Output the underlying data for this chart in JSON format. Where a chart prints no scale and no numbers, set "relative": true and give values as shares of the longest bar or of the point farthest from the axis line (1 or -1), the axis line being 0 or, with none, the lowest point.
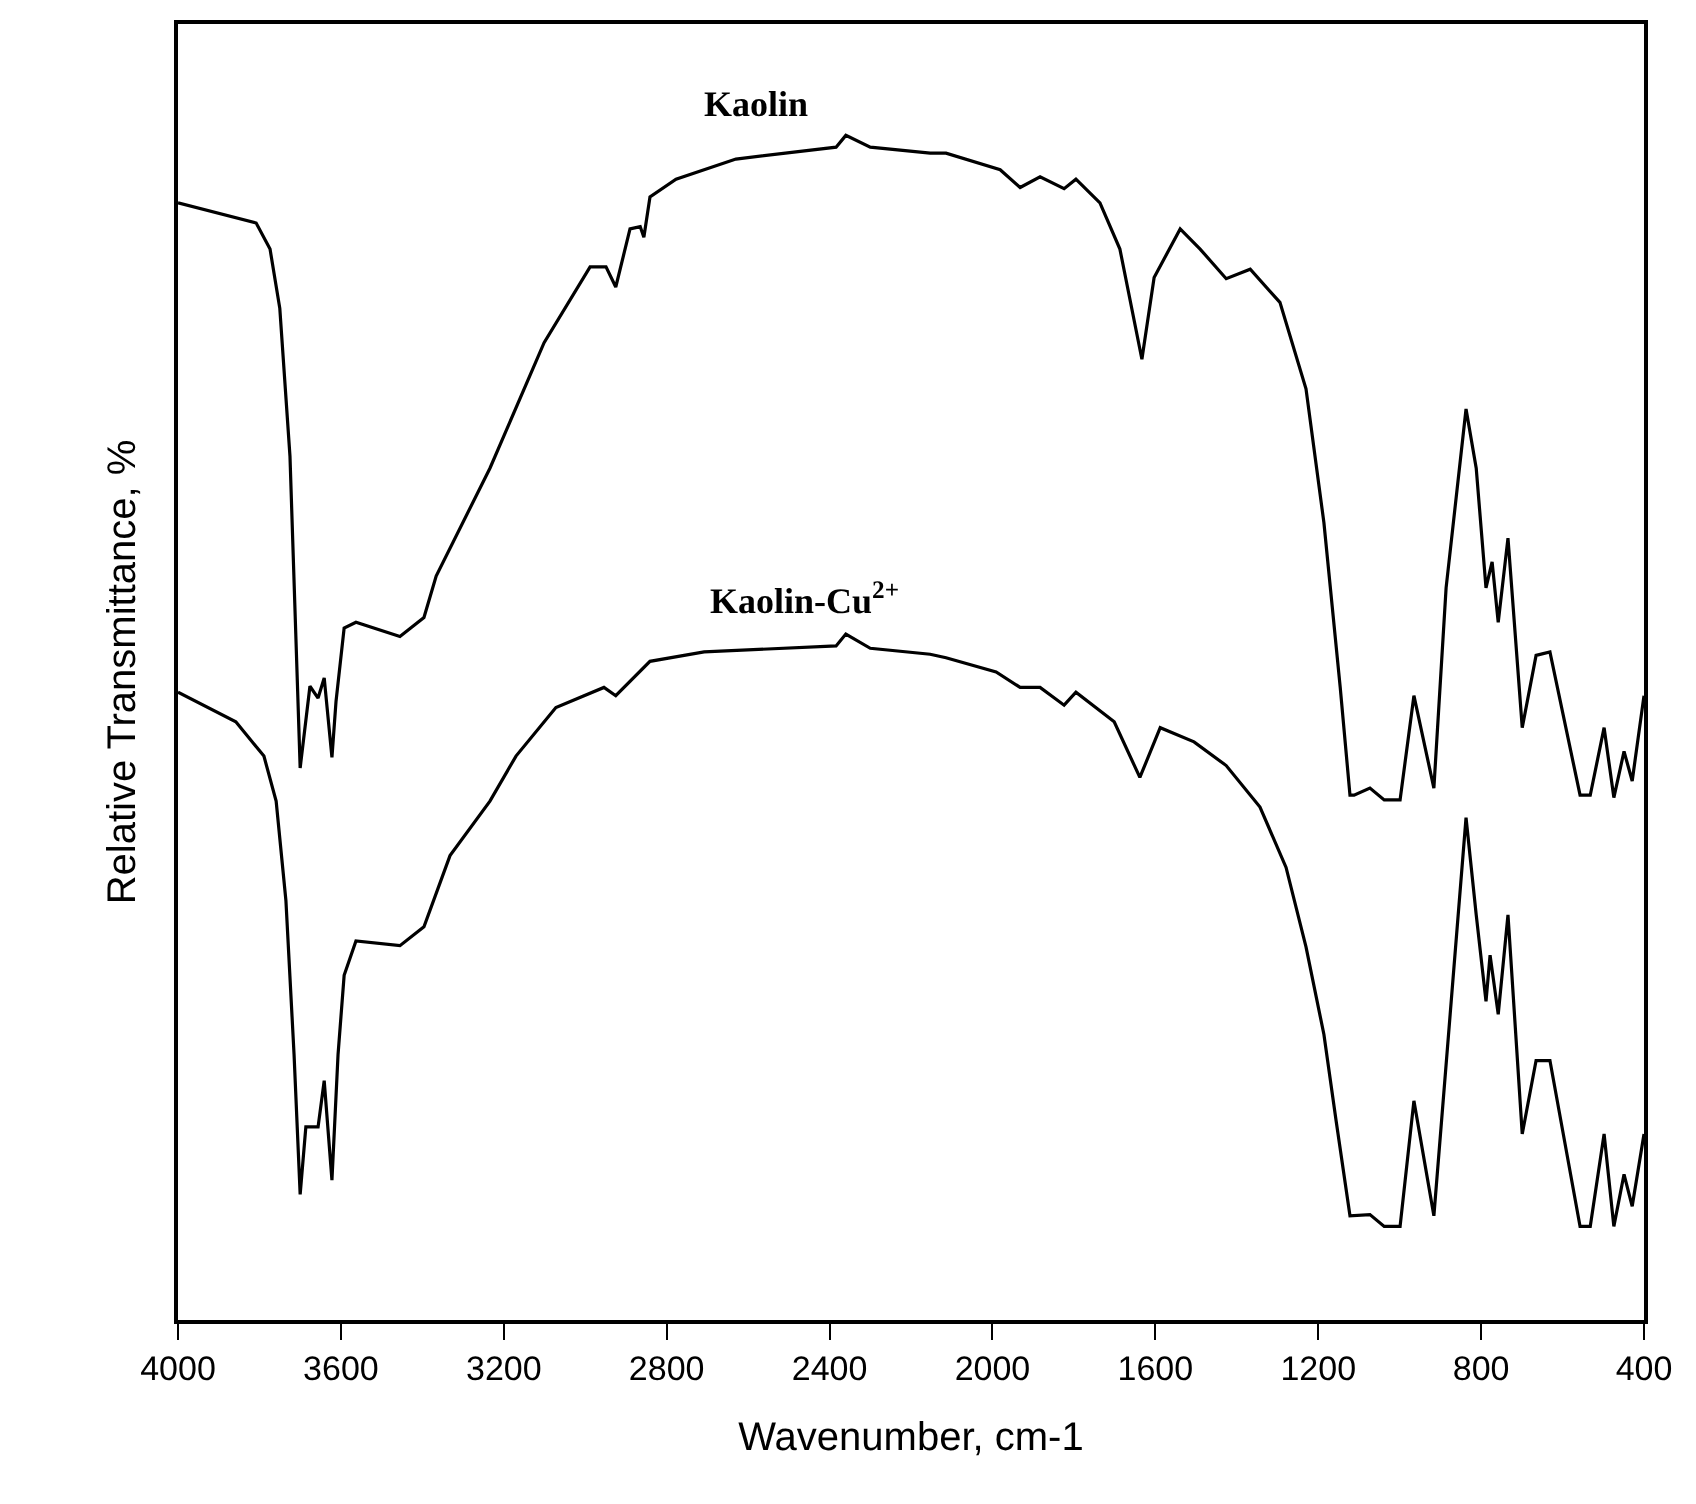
{
  "chart_data": {
    "type": "line",
    "relative": true,
    "xlabel": "Wavenumber, cm-1",
    "ylabel": "Relative Transmittance, %",
    "xlim": [
      4000,
      400
    ],
    "xticks": [
      4000,
      3600,
      3200,
      2800,
      2400,
      2000,
      1600,
      1200,
      800,
      400
    ],
    "tick_labels": "x",
    "legend": false,
    "marker": "none",
    "line_style": "solid",
    "series": [
      {
        "name": "Kaolin",
        "color": "#000000",
        "x": [
          4000,
          3808,
          3774,
          3750,
          3725,
          3700,
          3676,
          3656,
          3641,
          3622,
          3612,
          3592,
          3563,
          3455,
          3396,
          3366,
          3234,
          3101,
          2988,
          2949,
          2925,
          2890,
          2865,
          2856,
          2841,
          2777,
          2630,
          2384,
          2360,
          2300,
          2153,
          2114,
          1981,
          1932,
          1883,
          1824,
          1795,
          1736,
          1687,
          1633,
          1603,
          1539,
          1490,
          1426,
          1367,
          1294,
          1230,
          1186,
          1146,
          1122,
          1112,
          1073,
          1038,
          999,
          965,
          916,
          886,
          837,
          812,
          788,
          773,
          758,
          734,
          699,
          665,
          631,
          557,
          532,
          498,
          474,
          449,
          429,
          400
        ],
        "values": [
          0.943,
          0.926,
          0.904,
          0.854,
          0.729,
          0.466,
          0.535,
          0.525,
          0.542,
          0.475,
          0.522,
          0.584,
          0.589,
          0.577,
          0.593,
          0.628,
          0.719,
          0.825,
          0.889,
          0.889,
          0.872,
          0.921,
          0.923,
          0.914,
          0.948,
          0.963,
          0.98,
          0.99,
          1,
          0.99,
          0.985,
          0.985,
          0.971,
          0.956,
          0.965,
          0.955,
          0.963,
          0.943,
          0.904,
          0.811,
          0.88,
          0.921,
          0.904,
          0.879,
          0.887,
          0.859,
          0.786,
          0.673,
          0.534,
          0.443,
          0.443,
          0.449,
          0.439,
          0.439,
          0.527,
          0.449,
          0.618,
          0.769,
          0.719,
          0.618,
          0.64,
          0.589,
          0.66,
          0.5,
          0.561,
          0.564,
          0.443,
          0.443,
          0.5,
          0.441,
          0.48,
          0.455,
          0.527
        ]
      },
      {
        "name": "Kaolin-Cu$^{2+}$",
        "color": "#000000",
        "x": [
          4000,
          3858,
          3789,
          3759,
          3735,
          3715,
          3700,
          3686,
          3656,
          3641,
          3622,
          3607,
          3592,
          3563,
          3455,
          3396,
          3332,
          3234,
          3170,
          3072,
          2954,
          2925,
          2841,
          2708,
          2384,
          2360,
          2300,
          2153,
          2114,
          1991,
          1932,
          1883,
          1824,
          1795,
          1701,
          1638,
          1588,
          1505,
          1426,
          1343,
          1279,
          1230,
          1186,
          1156,
          1122,
          1073,
          1038,
          999,
          965,
          916,
          876,
          837,
          812,
          788,
          778,
          758,
          734,
          699,
          665,
          631,
          557,
          532,
          498,
          474,
          449,
          429,
          400
        ],
        "values": [
          0.53,
          0.505,
          0.476,
          0.438,
          0.354,
          0.224,
          0.106,
          0.163,
          0.163,
          0.202,
          0.118,
          0.224,
          0.291,
          0.32,
          0.316,
          0.332,
          0.392,
          0.438,
          0.476,
          0.517,
          0.534,
          0.527,
          0.556,
          0.564,
          0.569,
          0.579,
          0.567,
          0.562,
          0.559,
          0.547,
          0.534,
          0.534,
          0.519,
          0.53,
          0.505,
          0.458,
          0.5,
          0.488,
          0.468,
          0.433,
          0.382,
          0.315,
          0.241,
          0.168,
          0.088,
          0.089,
          0.079,
          0.079,
          0.185,
          0.088,
          0.258,
          0.424,
          0.342,
          0.269,
          0.308,
          0.258,
          0.342,
          0.157,
          0.219,
          0.219,
          0.079,
          0.079,
          0.157,
          0.079,
          0.123,
          0.096,
          0.157
        ]
      }
    ]
  }
}
